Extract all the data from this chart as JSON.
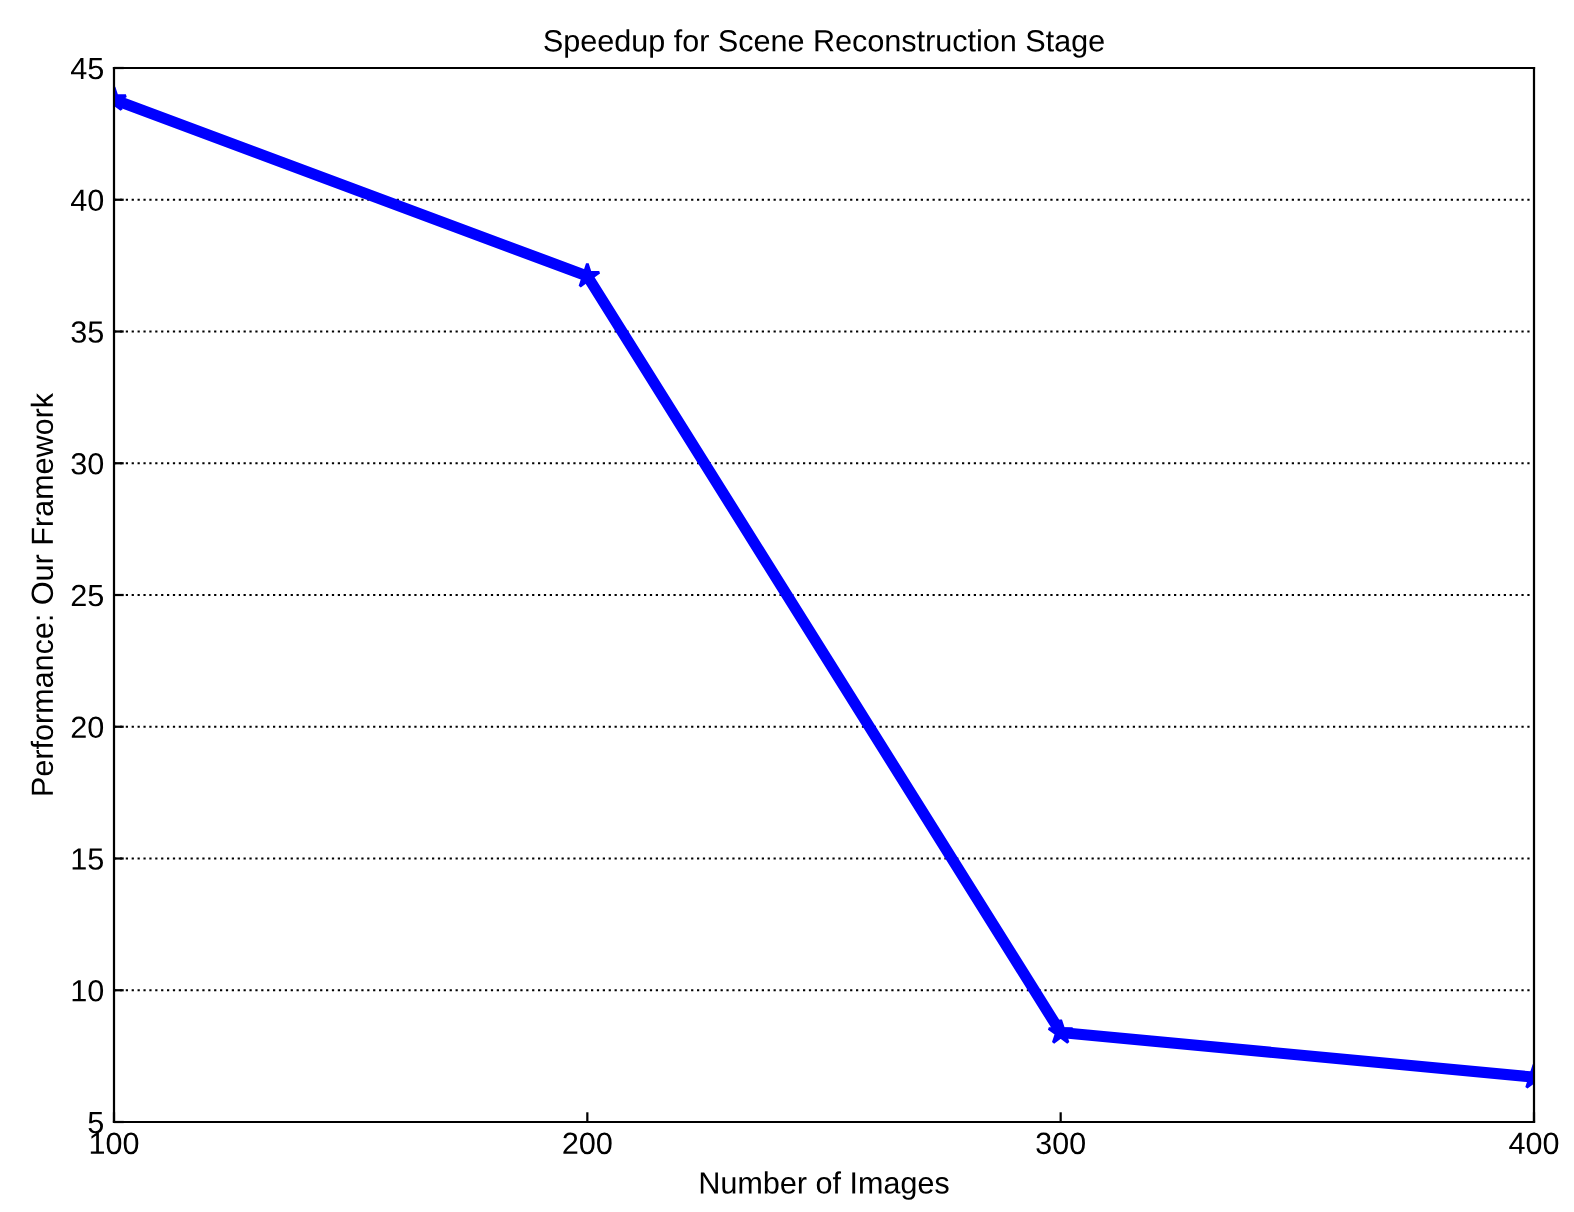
{
  "chart_data": {
    "type": "line",
    "title": "Speedup for Scene Reconstruction Stage",
    "xlabel": "Number of Images",
    "ylabel": "Performance: Our Framework",
    "x": [
      100,
      200,
      300,
      400
    ],
    "series": [
      {
        "color": "#0000ff",
        "values": [
          43.8,
          37.1,
          8.4,
          6.7
        ]
      }
    ],
    "xlim": [
      100,
      400
    ],
    "xticks": [
      100,
      200,
      300,
      400
    ],
    "ylim": [
      5,
      45
    ],
    "yticks": [
      5,
      10,
      15,
      20,
      25,
      30,
      35,
      40,
      45
    ],
    "grid": "y",
    "marker": "star",
    "line_style": "solid"
  }
}
